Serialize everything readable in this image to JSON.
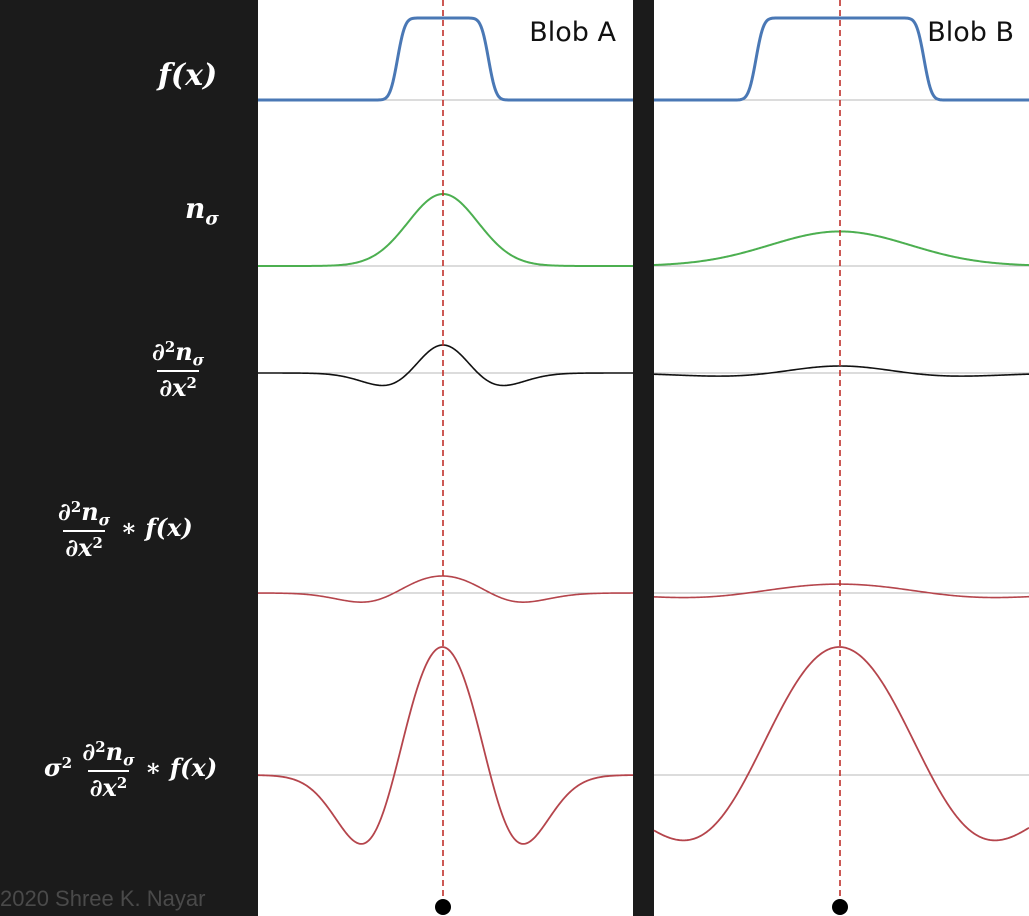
{
  "panels": [
    {
      "title": "Blob A",
      "blob_width": 0.65,
      "sigma": 0.5
    },
    {
      "title": "Blob B",
      "blob_width": 1.2,
      "sigma": 1.0
    }
  ],
  "rows": [
    "f(x)",
    "n_σ",
    "∂²n_σ/∂x²",
    "∂²n_σ/∂x² * f(x)",
    "σ² ∂²n_σ/∂x² * f(x)"
  ],
  "copyright": "2020 Shree K. Nayar",
  "colors": {
    "blob": "#4a78b5",
    "gaussian": "#4caf50",
    "second_derivative": "#111111",
    "response": "#b5454c",
    "center_line": "#c0302b",
    "baseline": "#b8b8b8",
    "background": "#1b1b1b"
  },
  "icons": [
    "minimum-marker-dot"
  ]
}
